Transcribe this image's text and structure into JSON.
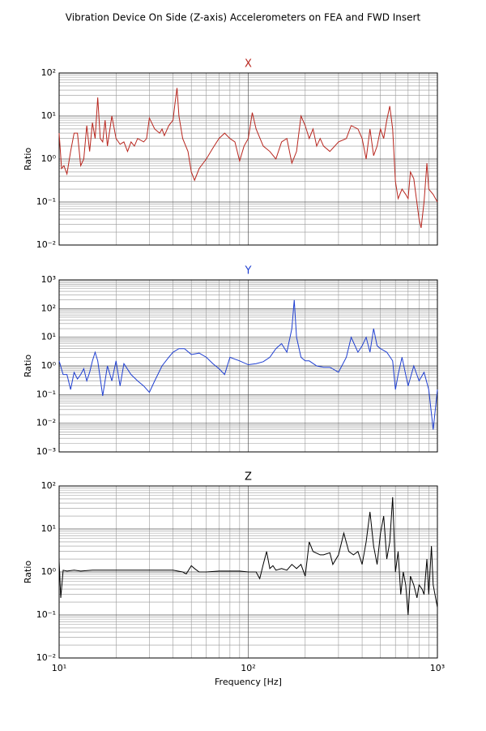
{
  "title": "Vibration Device On Side (Z-axis) Accelerometers on FEA and FWD Insert",
  "chart_data": [
    {
      "type": "line",
      "title": "X",
      "ylabel": "Ratio",
      "color": "#b8261e",
      "xscale": "log",
      "yscale": "log",
      "grid": true,
      "xlim": [
        10,
        1000
      ],
      "xticks": [
        10,
        100,
        1000
      ],
      "xminorticks": [
        20,
        30,
        40,
        50,
        60,
        70,
        80,
        90,
        200,
        300,
        400,
        500,
        600,
        700,
        800,
        900
      ],
      "ylim": [
        0.01,
        100
      ],
      "yticks": [
        {
          "value": 0.01,
          "label": "10⁻²"
        },
        {
          "value": 0.1,
          "label": "10⁻¹"
        },
        {
          "value": 1,
          "label": "10⁰"
        },
        {
          "value": 10,
          "label": "10¹"
        },
        {
          "value": 100,
          "label": "10²"
        }
      ],
      "yminorticks": [
        0.02,
        0.03,
        0.04,
        0.05,
        0.06,
        0.07,
        0.08,
        0.09,
        0.2,
        0.3,
        0.4,
        0.5,
        0.6,
        0.7,
        0.8,
        0.9,
        2,
        3,
        4,
        5,
        6,
        7,
        8,
        9,
        20,
        30,
        40,
        50,
        60,
        70,
        80,
        90
      ],
      "x": [
        10,
        10.3,
        10.6,
        11,
        11.5,
        12,
        12.5,
        13,
        13.5,
        14,
        14.5,
        15,
        15.5,
        16,
        16.5,
        17,
        17.5,
        18,
        19,
        20,
        21,
        22,
        23,
        24,
        25,
        26,
        28,
        29,
        30,
        32,
        34,
        35,
        36,
        38,
        40,
        41,
        42,
        43,
        45,
        48,
        50,
        52,
        55,
        60,
        65,
        70,
        75,
        80,
        85,
        90,
        95,
        100,
        105,
        110,
        120,
        130,
        140,
        150,
        160,
        170,
        180,
        190,
        200,
        210,
        220,
        230,
        240,
        250,
        270,
        300,
        330,
        350,
        380,
        400,
        420,
        440,
        460,
        480,
        500,
        520,
        540,
        560,
        580,
        600,
        620,
        650,
        680,
        700,
        720,
        750,
        800,
        820,
        850,
        880,
        900,
        950,
        1000
      ],
      "values": [
        4,
        0.6,
        0.7,
        0.45,
        1.5,
        4,
        4,
        0.7,
        1.0,
        6,
        1.5,
        7,
        3,
        27,
        3,
        2.5,
        8,
        2,
        10,
        3,
        2.2,
        2.5,
        1.5,
        2.5,
        2,
        3,
        2.5,
        3,
        9,
        5,
        4,
        5,
        3.5,
        6,
        8,
        20,
        45,
        10,
        3,
        1.5,
        0.5,
        0.32,
        0.6,
        1,
        1.8,
        3,
        4,
        3,
        2.5,
        0.9,
        2,
        3,
        12,
        5,
        2,
        1.5,
        1,
        2.5,
        3,
        0.8,
        1.5,
        10,
        6,
        3,
        5,
        2,
        3,
        2,
        1.5,
        2.5,
        3,
        6,
        5,
        3,
        1,
        5,
        1.2,
        2,
        5,
        3,
        8,
        17,
        5,
        0.3,
        0.12,
        0.2,
        0.15,
        0.12,
        0.5,
        0.35,
        0.04,
        0.025,
        0.1,
        0.8,
        0.2,
        0.15,
        0.1
      ]
    },
    {
      "type": "line",
      "title": "Y",
      "ylabel": "Ratio",
      "color": "#1f3fd1",
      "xscale": "log",
      "yscale": "log",
      "grid": true,
      "xlim": [
        10,
        1000
      ],
      "xticks": [
        10,
        100,
        1000
      ],
      "xminorticks": [
        20,
        30,
        40,
        50,
        60,
        70,
        80,
        90,
        200,
        300,
        400,
        500,
        600,
        700,
        800,
        900
      ],
      "ylim": [
        0.001,
        1000
      ],
      "yticks": [
        {
          "value": 0.001,
          "label": "10⁻³"
        },
        {
          "value": 0.01,
          "label": "10⁻²"
        },
        {
          "value": 0.1,
          "label": "10⁻¹"
        },
        {
          "value": 1,
          "label": "10⁰"
        },
        {
          "value": 10,
          "label": "10¹"
        },
        {
          "value": 100,
          "label": "10²"
        },
        {
          "value": 1000,
          "label": "10³"
        }
      ],
      "yminorticks": [
        0.002,
        0.003,
        0.004,
        0.005,
        0.006,
        0.007,
        0.008,
        0.009,
        0.02,
        0.03,
        0.04,
        0.05,
        0.06,
        0.07,
        0.08,
        0.09,
        0.2,
        0.3,
        0.4,
        0.5,
        0.6,
        0.7,
        0.8,
        0.9,
        2,
        3,
        4,
        5,
        6,
        7,
        8,
        9,
        20,
        30,
        40,
        50,
        60,
        70,
        80,
        90,
        200,
        300,
        400,
        500,
        600,
        700,
        800,
        900
      ],
      "x": [
        10,
        10.5,
        11,
        11.5,
        12,
        12.5,
        13,
        13.5,
        14,
        14.5,
        15,
        15.5,
        16,
        17,
        18,
        19,
        20,
        21,
        22,
        24,
        26,
        28,
        30,
        32,
        35,
        38,
        40,
        43,
        46,
        50,
        55,
        60,
        65,
        70,
        75,
        80,
        90,
        100,
        110,
        120,
        130,
        140,
        150,
        160,
        170,
        175,
        180,
        190,
        200,
        210,
        230,
        250,
        270,
        300,
        330,
        350,
        380,
        400,
        420,
        440,
        460,
        480,
        500,
        540,
        580,
        600,
        620,
        650,
        700,
        750,
        800,
        850,
        900,
        950,
        1000
      ],
      "values": [
        1.5,
        0.5,
        0.5,
        0.15,
        0.6,
        0.35,
        0.5,
        0.8,
        0.3,
        0.6,
        1.5,
        3,
        1.5,
        0.09,
        1.0,
        0.3,
        1.5,
        0.2,
        1.2,
        0.5,
        0.3,
        0.2,
        0.12,
        0.3,
        1,
        2,
        3,
        4,
        4,
        2.5,
        2.8,
        2,
        1.2,
        0.8,
        0.5,
        2,
        1.5,
        1.1,
        1.2,
        1.4,
        2,
        4,
        6,
        3,
        20,
        200,
        10,
        2,
        1.5,
        1.5,
        1,
        0.9,
        0.9,
        0.6,
        2,
        10,
        3,
        5,
        10,
        3,
        20,
        5,
        4,
        3,
        1.5,
        0.15,
        0.5,
        2,
        0.2,
        1.0,
        0.3,
        0.6,
        0.15,
        0.006,
        0.15
      ]
    },
    {
      "type": "line",
      "title": "Z",
      "ylabel": "Ratio",
      "xlabel": "Frequency [Hz]",
      "color": "#000000",
      "xscale": "log",
      "yscale": "log",
      "grid": true,
      "xlim": [
        10,
        1000
      ],
      "xticks": [
        {
          "value": 10,
          "label": "10¹"
        },
        {
          "value": 100,
          "label": "10²"
        },
        {
          "value": 1000,
          "label": "10³"
        }
      ],
      "xminorticks": [
        20,
        30,
        40,
        50,
        60,
        70,
        80,
        90,
        200,
        300,
        400,
        500,
        600,
        700,
        800,
        900
      ],
      "ylim": [
        0.01,
        100
      ],
      "yticks": [
        {
          "value": 0.01,
          "label": "10⁻²"
        },
        {
          "value": 0.1,
          "label": "10⁻¹"
        },
        {
          "value": 1,
          "label": "10⁰"
        },
        {
          "value": 10,
          "label": "10¹"
        },
        {
          "value": 100,
          "label": "10²"
        }
      ],
      "yminorticks": [
        0.02,
        0.03,
        0.04,
        0.05,
        0.06,
        0.07,
        0.08,
        0.09,
        0.2,
        0.3,
        0.4,
        0.5,
        0.6,
        0.7,
        0.8,
        0.9,
        2,
        3,
        4,
        5,
        6,
        7,
        8,
        9,
        20,
        30,
        40,
        50,
        60,
        70,
        80,
        90
      ],
      "x": [
        10,
        10.2,
        10.5,
        11,
        12,
        13,
        15,
        20,
        30,
        40,
        45,
        47,
        50,
        52,
        55,
        60,
        70,
        80,
        90,
        100,
        110,
        115,
        120,
        125,
        130,
        135,
        140,
        150,
        160,
        170,
        180,
        190,
        200,
        210,
        220,
        240,
        250,
        270,
        280,
        300,
        320,
        340,
        360,
        380,
        400,
        420,
        440,
        460,
        480,
        500,
        520,
        540,
        560,
        580,
        600,
        620,
        640,
        660,
        680,
        700,
        720,
        750,
        780,
        800,
        830,
        850,
        880,
        900,
        930,
        950,
        1000
      ],
      "values": [
        1.8,
        0.25,
        1.1,
        1.05,
        1.1,
        1.05,
        1.1,
        1.1,
        1.1,
        1.1,
        1.0,
        0.9,
        1.4,
        1.2,
        1.0,
        1.0,
        1.05,
        1.05,
        1.05,
        1.0,
        1.0,
        0.7,
        1.5,
        3,
        1.2,
        1.4,
        1.1,
        1.2,
        1.1,
        1.5,
        1.2,
        1.5,
        0.8,
        5,
        3,
        2.5,
        2.5,
        2.8,
        1.5,
        2.5,
        8,
        3,
        2.5,
        3,
        1.5,
        5,
        25,
        4,
        1.5,
        8,
        20,
        2,
        5,
        55,
        1,
        3,
        0.3,
        1,
        0.5,
        0.1,
        0.8,
        0.5,
        0.25,
        0.5,
        0.4,
        0.3,
        2,
        0.3,
        4,
        0.5,
        0.15
      ]
    }
  ]
}
